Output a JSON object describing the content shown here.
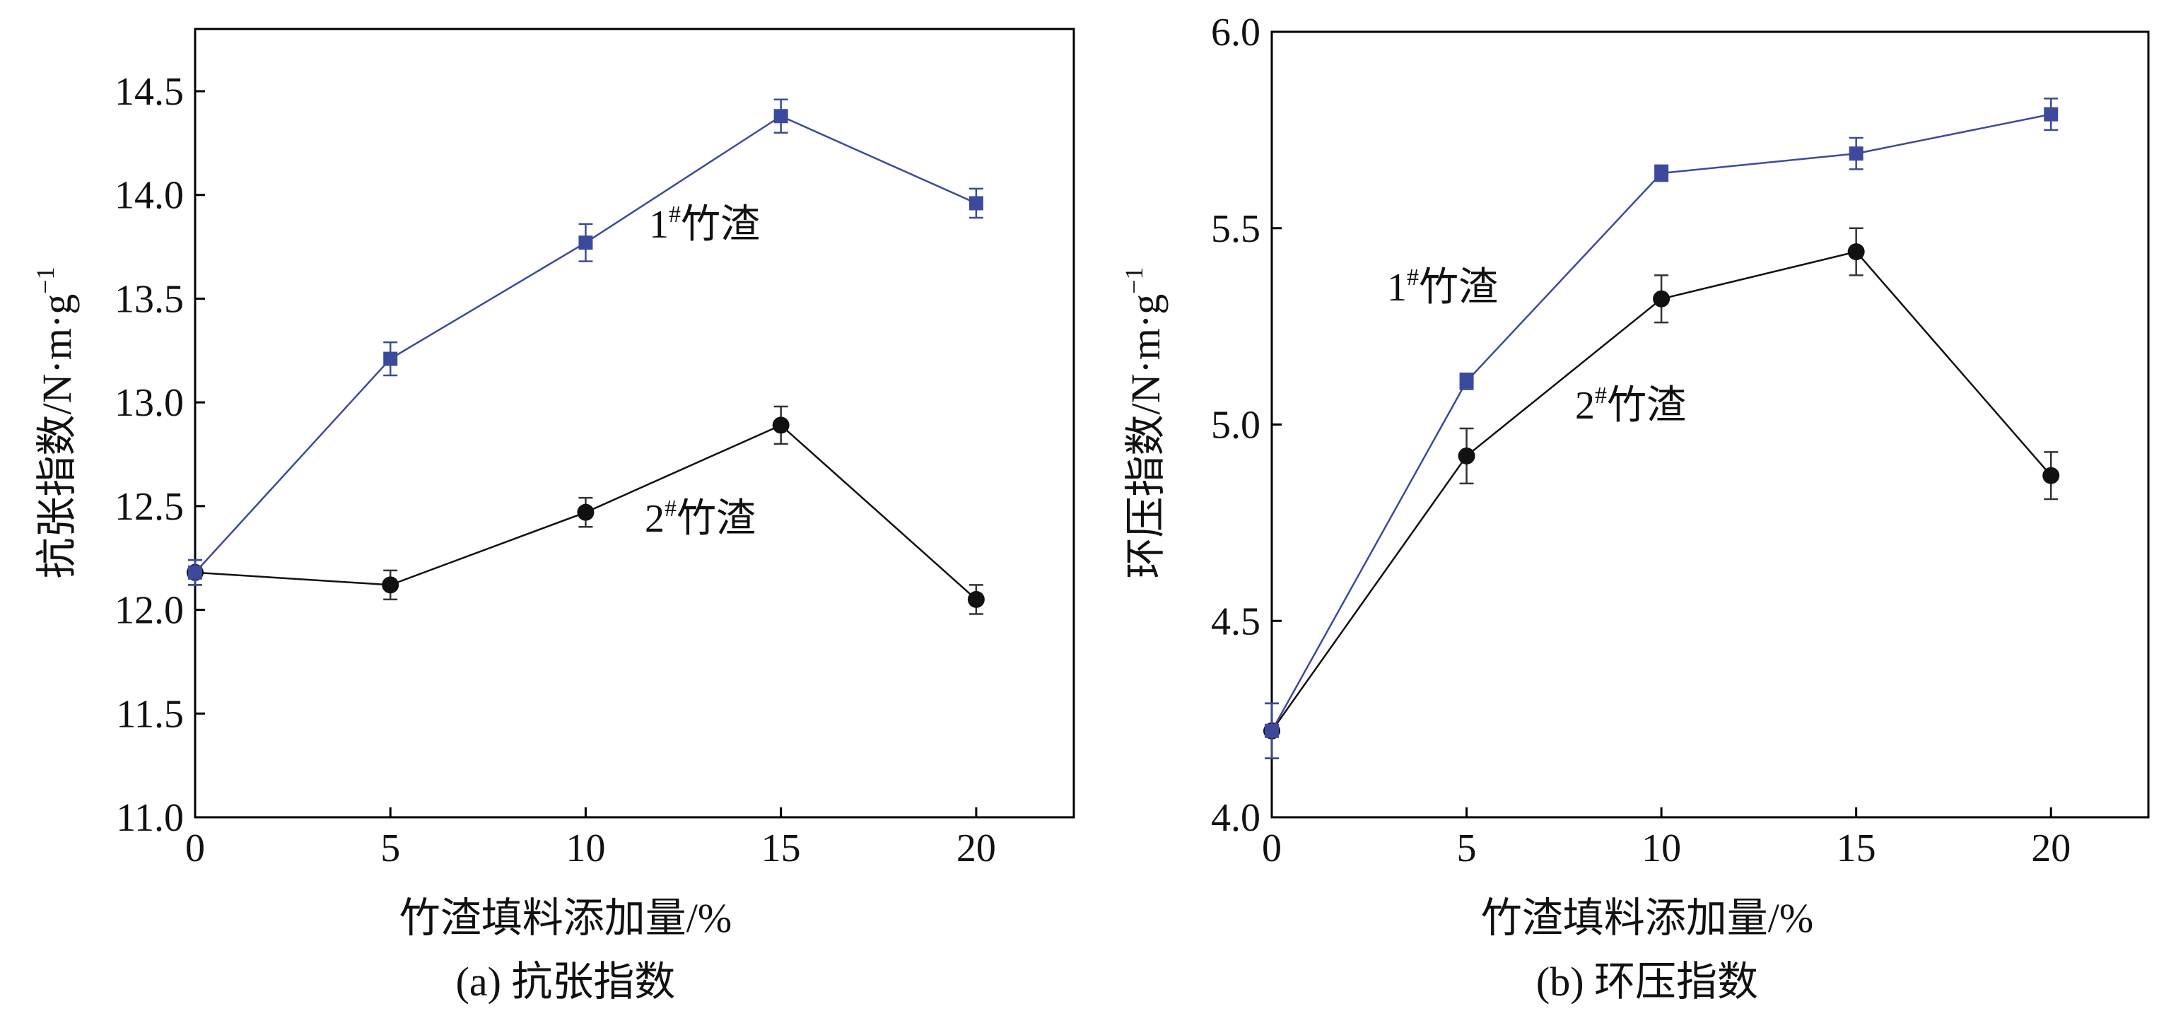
{
  "chart_data": [
    {
      "type": "line",
      "caption": "(a) 抗张指数",
      "xlabel": "竹渣填料添加量/%",
      "ylabel": "抗张指数/N·m·g",
      "ylabel_superscript": "−1",
      "x": [
        0,
        5,
        10,
        15,
        20
      ],
      "xlim": [
        0,
        22.5
      ],
      "xticks": [
        "0",
        "5",
        "10",
        "15",
        "20"
      ],
      "ylim": [
        11.0,
        14.8
      ],
      "yticks": [
        "11.0",
        "11.5",
        "12.0",
        "12.5",
        "13.0",
        "13.5",
        "14.0",
        "14.5"
      ],
      "grid": false,
      "series": [
        {
          "name": "1#竹渣",
          "label_main": "1",
          "label_sup": "#",
          "label_suffix": "竹渣",
          "marker": "square",
          "color": "#3c4a9c",
          "values": [
            12.18,
            13.21,
            13.77,
            14.38,
            13.96
          ],
          "errors": [
            0.06,
            0.08,
            0.09,
            0.08,
            0.07
          ]
        },
        {
          "name": "2#竹渣",
          "label_main": "2",
          "label_sup": "#",
          "label_suffix": "竹渣",
          "marker": "circle",
          "color": "#111111",
          "values": [
            12.18,
            12.12,
            12.47,
            12.89,
            12.05
          ],
          "errors": [
            0.06,
            0.07,
            0.07,
            0.09,
            0.07
          ]
        }
      ]
    },
    {
      "type": "line",
      "caption": "(b) 环压指数",
      "xlabel": "竹渣填料添加量/%",
      "ylabel": "环压指数/N·m·g",
      "ylabel_superscript": "−1",
      "x": [
        0,
        5,
        10,
        15,
        20
      ],
      "xlim": [
        0,
        22.5
      ],
      "xticks": [
        "0",
        "5",
        "10",
        "15",
        "20"
      ],
      "ylim": [
        4.0,
        6.0
      ],
      "yticks": [
        "4.0",
        "4.5",
        "5.0",
        "5.5",
        "6.0"
      ],
      "grid": false,
      "series": [
        {
          "name": "1#竹渣",
          "label_main": "1",
          "label_sup": "#",
          "label_suffix": "竹渣",
          "marker": "square",
          "color": "#3c4a9c",
          "values": [
            4.22,
            5.11,
            5.64,
            5.69,
            5.79
          ],
          "errors": [
            0.07,
            0.02,
            0.02,
            0.04,
            0.04
          ]
        },
        {
          "name": "2#竹渣",
          "label_main": "2",
          "label_sup": "#",
          "label_suffix": "竹渣",
          "marker": "circle",
          "color": "#111111",
          "values": [
            4.22,
            4.92,
            5.32,
            5.44,
            4.87
          ],
          "errors": [
            0.07,
            0.07,
            0.06,
            0.06,
            0.06
          ]
        }
      ]
    }
  ]
}
